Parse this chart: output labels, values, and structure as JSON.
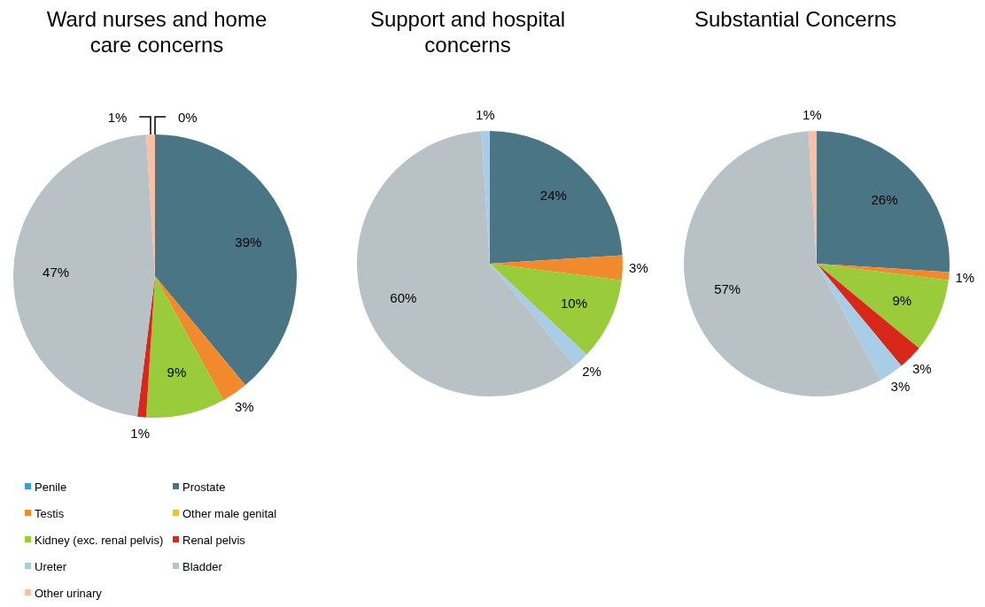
{
  "chart_data": [
    {
      "type": "pie",
      "title": "Ward nurses and home care concerns",
      "legend": "bottom",
      "categories": [
        "Penile",
        "Prostate",
        "Testis",
        "Other male genital",
        "Kidney (exc. renal pelvis)",
        "Renal pelvis",
        "Ureter",
        "Bladder",
        "Other urinary"
      ],
      "values": [
        0,
        39,
        3,
        0,
        9,
        1,
        0,
        47,
        1
      ],
      "value_labels": [
        "0%",
        "39%",
        "3%",
        null,
        "9%",
        "1%",
        null,
        "47%",
        "1%"
      ],
      "colors": [
        "#a9cde6",
        "#4a7584",
        "#f08a2c",
        "#f5c21b",
        "#9acb3a",
        "#d8281c",
        "#a9cde6",
        "#b7c1c6",
        "#f7bfa3"
      ]
    },
    {
      "type": "pie",
      "title": "Support and hospital concerns",
      "categories": [
        null,
        null,
        null,
        null,
        null,
        null,
        null,
        null,
        null
      ],
      "values": [
        0,
        24,
        3,
        0,
        10,
        0,
        2,
        60,
        1
      ],
      "value_labels": [
        null,
        "24%",
        "3%",
        null,
        "10%",
        null,
        "2%",
        "60%",
        "1%"
      ],
      "colors": [
        "#3a9fd0",
        "#4a7584",
        "#f08a2c",
        "#f5c21b",
        "#9acb3a",
        "#d8281c",
        "#a9cde6",
        "#b7c1c6",
        "#a9cde6"
      ]
    },
    {
      "type": "pie",
      "title": "Substantial Concerns",
      "categories": [
        null,
        null,
        null,
        null,
        null,
        null,
        null,
        null,
        null
      ],
      "values": [
        0,
        26,
        1,
        0,
        9,
        3,
        3,
        57,
        1
      ],
      "value_labels": [
        null,
        "26%",
        "1%",
        null,
        "9%",
        "3%",
        "3%",
        "57%",
        "1%"
      ],
      "colors": [
        "#3a9fd0",
        "#4a7584",
        "#f08a2c",
        "#f5c21b",
        "#9acb3a",
        "#d8281c",
        "#a9cde6",
        "#b7c1c6",
        "#f7bfa3"
      ]
    }
  ]
}
